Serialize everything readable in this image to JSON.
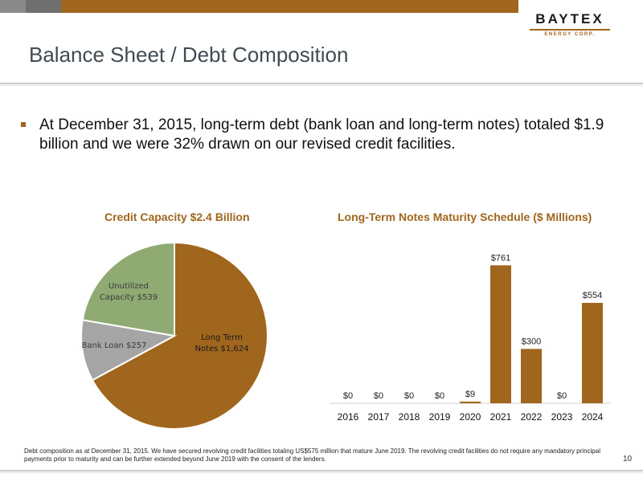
{
  "logo": {
    "name": "BAYTEX",
    "sub": "ENERGY CORP."
  },
  "title": "Balance Sheet  / Debt Composition",
  "bullet": "At December 31, 2015, long-term debt (bank loan and long-term notes) totaled $1.9 billion and we were 32% drawn on our revised credit facilities.",
  "colors": {
    "accent": "#a0661e",
    "grey_slice": "#a5a5a5",
    "green_slice": "#8faa73",
    "title_text": "#404a52"
  },
  "chart_data": [
    {
      "type": "pie",
      "title": "Credit Capacity $2.4 Billion",
      "slices": [
        {
          "label_lines": [
            "Long Term",
            "Notes $1,624"
          ],
          "value": 1624,
          "color": "#a0661e"
        },
        {
          "label_lines": [
            "Bank Loan $257"
          ],
          "value": 257,
          "color": "#a5a5a5"
        },
        {
          "label_lines": [
            "Unutilized",
            "Capacity $539"
          ],
          "value": 539,
          "color": "#8faa73"
        }
      ]
    },
    {
      "type": "bar",
      "title": "Long-Term Notes Maturity Schedule ($ Millions)",
      "categories": [
        "2016",
        "2017",
        "2018",
        "2019",
        "2020",
        "2021",
        "2022",
        "2023",
        "2024"
      ],
      "values": [
        0,
        0,
        0,
        0,
        9,
        761,
        300,
        0,
        554
      ],
      "data_labels": [
        "$0",
        "$0",
        "$0",
        "$0",
        "$9",
        "$761",
        "$300",
        "$0",
        "$554"
      ],
      "ylim": [
        0,
        800
      ],
      "color": "#a0661e"
    }
  ],
  "footnote": "Debt composition as at December 31, 2015. We have secured revolving credit facilities totaling US$575 million that mature June 2019. The revolving credit facilities do not require any mandatory principal payments prior to maturity and can be further extended beyond June 2019 with the consent of the lenders.",
  "page_number": "10"
}
